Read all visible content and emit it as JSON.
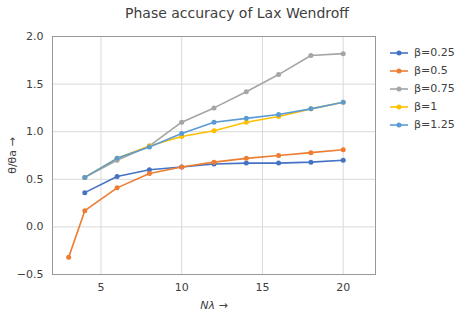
{
  "chart_data": {
    "type": "line",
    "title": "Phase accuracy of Lax Wendroff",
    "x_label": "Nλ",
    "y_label": "θ/θa",
    "xlim": [
      2,
      22
    ],
    "ylim": [
      -0.5,
      2.0
    ],
    "xticks": [
      5,
      10,
      15,
      20
    ],
    "yticks": [
      -0.5,
      {
        "value": 0,
        "label": "0.0"
      },
      0.5,
      {
        "value": 1.0,
        "label": "1.0"
      },
      1.5,
      {
        "value": 2.0,
        "label": "2.0"
      }
    ],
    "grid": true,
    "legend": "right",
    "marker": "circle",
    "series": [
      {
        "name": "β=0.25",
        "color": "#4472c4",
        "x": [
          4,
          6,
          8,
          10,
          12,
          14,
          16,
          18,
          20
        ],
        "values": [
          0.36,
          0.53,
          0.6,
          0.63,
          0.66,
          0.67,
          0.67,
          0.68,
          0.7
        ]
      },
      {
        "name": "β=0.5",
        "color": "#ed7d31",
        "x": [
          3,
          4,
          6,
          8,
          10,
          12,
          14,
          16,
          18,
          20
        ],
        "values": [
          -0.32,
          0.17,
          0.41,
          0.56,
          0.63,
          0.68,
          0.72,
          0.75,
          0.78,
          0.81
        ]
      },
      {
        "name": "β=0.75",
        "color": "#a5a5a5",
        "x": [
          4,
          6,
          8,
          10,
          12,
          14,
          16,
          18,
          20
        ],
        "values": [
          0.52,
          0.7,
          0.85,
          1.1,
          1.25,
          1.42,
          1.6,
          1.8,
          1.82
        ]
      },
      {
        "name": "β=1",
        "color": "#ffc000",
        "x": [
          4,
          6,
          8,
          10,
          12,
          14,
          16,
          18,
          20
        ],
        "values": [
          0.52,
          0.72,
          0.85,
          0.95,
          1.01,
          1.1,
          1.16,
          1.24,
          1.31
        ]
      },
      {
        "name": "β=1.25",
        "color": "#5b9bd5",
        "x": [
          4,
          6,
          8,
          10,
          12,
          14,
          16,
          18,
          20
        ],
        "values": [
          0.52,
          0.72,
          0.84,
          0.98,
          1.1,
          1.14,
          1.18,
          1.24,
          1.31
        ]
      }
    ]
  }
}
